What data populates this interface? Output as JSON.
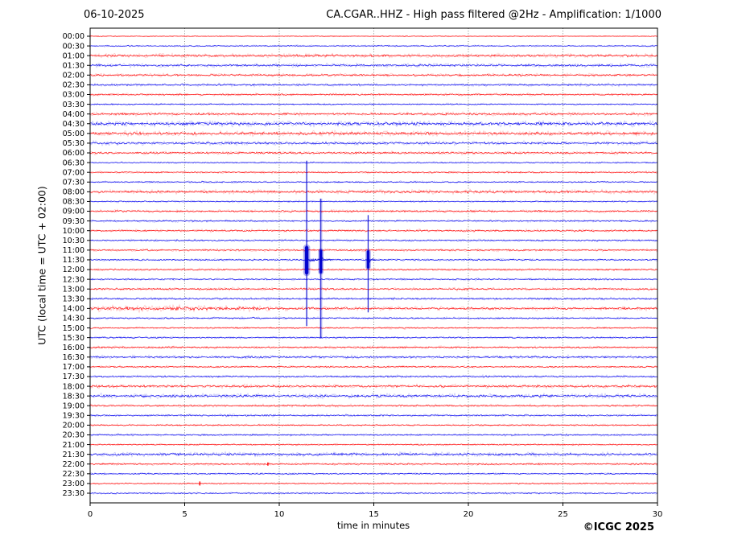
{
  "header": {
    "date": "06-10-2025",
    "title": "CA.CGAR..HHZ - High pass filtered @2Hz - Amplification: 1/1000"
  },
  "footer": {
    "copyright": "©ICGC 2025"
  },
  "chart_data": {
    "type": "line",
    "subtype": "helicorder-daily-seismogram",
    "title": "CA.CGAR..HHZ - High pass filtered @2Hz - Amplification: 1/1000",
    "date": "06-10-2025",
    "xlabel": "time in minutes",
    "ylabel": "UTC (local time = UTC + 02:00)",
    "x_range": [
      0,
      30
    ],
    "x_ticks": [
      0,
      5,
      10,
      15,
      20,
      25,
      30
    ],
    "grid_minutes": [
      5,
      10,
      15,
      20,
      25
    ],
    "minutes_per_row": 30,
    "legend": "none",
    "grid": "vertical-dotted",
    "colors": {
      "trace_red": "#ff0000",
      "trace_blue": "#0000ee",
      "event_blue": "#0000cc",
      "grid": "#777777",
      "axis": "#000000",
      "text": "#000000",
      "background": "#ffffff"
    },
    "rows": [
      {
        "label": "00:00",
        "color": "red",
        "amp": 0.4
      },
      {
        "label": "00:30",
        "color": "blue",
        "amp": 0.7
      },
      {
        "label": "01:00",
        "color": "red",
        "amp": 1.4
      },
      {
        "label": "01:30",
        "color": "blue",
        "amp": 1.3
      },
      {
        "label": "02:00",
        "color": "red",
        "amp": 1.2
      },
      {
        "label": "02:30",
        "color": "blue",
        "amp": 1.1
      },
      {
        "label": "03:00",
        "color": "red",
        "amp": 1.0
      },
      {
        "label": "03:30",
        "color": "blue",
        "amp": 0.8
      },
      {
        "label": "04:00",
        "color": "red",
        "amp": 1.3
      },
      {
        "label": "04:30",
        "color": "blue",
        "amp": 1.9
      },
      {
        "label": "05:00",
        "color": "red",
        "amp": 1.7
      },
      {
        "label": "05:30",
        "color": "blue",
        "amp": 1.4
      },
      {
        "label": "06:00",
        "color": "red",
        "amp": 1.2
      },
      {
        "label": "06:30",
        "color": "blue",
        "amp": 0.7
      },
      {
        "label": "07:00",
        "color": "red",
        "amp": 0.9
      },
      {
        "label": "07:30",
        "color": "blue",
        "amp": 0.8
      },
      {
        "label": "08:00",
        "color": "red",
        "amp": 1.5
      },
      {
        "label": "08:30",
        "color": "blue",
        "amp": 0.8
      },
      {
        "label": "09:00",
        "color": "red",
        "amp": 1.1
      },
      {
        "label": "09:30",
        "color": "blue",
        "amp": 0.9
      },
      {
        "label": "10:00",
        "color": "red",
        "amp": 1.0
      },
      {
        "label": "10:30",
        "color": "blue",
        "amp": 0.9
      },
      {
        "label": "11:00",
        "color": "red",
        "amp": 1.0
      },
      {
        "label": "11:30",
        "color": "blue",
        "amp": 0.9
      },
      {
        "label": "12:00",
        "color": "red",
        "amp": 0.9
      },
      {
        "label": "12:30",
        "color": "blue",
        "amp": 0.9
      },
      {
        "label": "13:00",
        "color": "red",
        "amp": 1.1
      },
      {
        "label": "13:30",
        "color": "blue",
        "amp": 1.0
      },
      {
        "label": "14:00",
        "color": "red",
        "amp": 1.4
      },
      {
        "label": "14:30",
        "color": "blue",
        "amp": 0.9
      },
      {
        "label": "15:00",
        "color": "red",
        "amp": 0.8
      },
      {
        "label": "15:30",
        "color": "blue",
        "amp": 0.9
      },
      {
        "label": "16:00",
        "color": "red",
        "amp": 1.0
      },
      {
        "label": "16:30",
        "color": "blue",
        "amp": 1.2
      },
      {
        "label": "17:00",
        "color": "red",
        "amp": 0.9
      },
      {
        "label": "17:30",
        "color": "blue",
        "amp": 1.0
      },
      {
        "label": "18:00",
        "color": "red",
        "amp": 1.4
      },
      {
        "label": "18:30",
        "color": "blue",
        "amp": 1.6
      },
      {
        "label": "19:00",
        "color": "red",
        "amp": 1.0
      },
      {
        "label": "19:30",
        "color": "blue",
        "amp": 1.0
      },
      {
        "label": "20:00",
        "color": "red",
        "amp": 0.8
      },
      {
        "label": "20:30",
        "color": "blue",
        "amp": 0.9
      },
      {
        "label": "21:00",
        "color": "red",
        "amp": 0.8
      },
      {
        "label": "21:30",
        "color": "blue",
        "amp": 1.5
      },
      {
        "label": "22:00",
        "color": "red",
        "amp": 1.0
      },
      {
        "label": "22:30",
        "color": "blue",
        "amp": 0.8
      },
      {
        "label": "23:00",
        "color": "red",
        "amp": 0.7
      },
      {
        "label": "23:30",
        "color": "blue",
        "amp": 0.8
      }
    ],
    "noise_boosts": [
      {
        "row": "14:00",
        "from_min": 0,
        "to_min": 9.5,
        "factor": 1.5
      }
    ],
    "events": [
      {
        "row": "11:30",
        "minute": 11.45,
        "color": "#0000cc",
        "top": 12.8,
        "bottom": 29.8,
        "blob_up": 15,
        "blob_down": 16,
        "blob_w": 4.5,
        "halo_w": 2.2,
        "coda": 16
      },
      {
        "row": "11:30",
        "minute": 12.2,
        "color": "#0000cc",
        "top": 16.7,
        "bottom": 31.0,
        "blob_up": 11,
        "blob_down": 15,
        "blob_w": 3.5,
        "halo_w": 3.6,
        "coda": 13
      },
      {
        "row": "11:30",
        "minute": 14.7,
        "color": "#0000cc",
        "top": 18.4,
        "bottom": 28.4,
        "blob_up": 10,
        "blob_down": 9,
        "blob_w": 3.5,
        "halo_w": 1.8,
        "coda": 11
      }
    ],
    "blips": [
      {
        "row": "22:00",
        "minute": 9.4,
        "size": 2
      },
      {
        "row": "23:00",
        "minute": 5.8,
        "size": 2.5
      }
    ]
  }
}
